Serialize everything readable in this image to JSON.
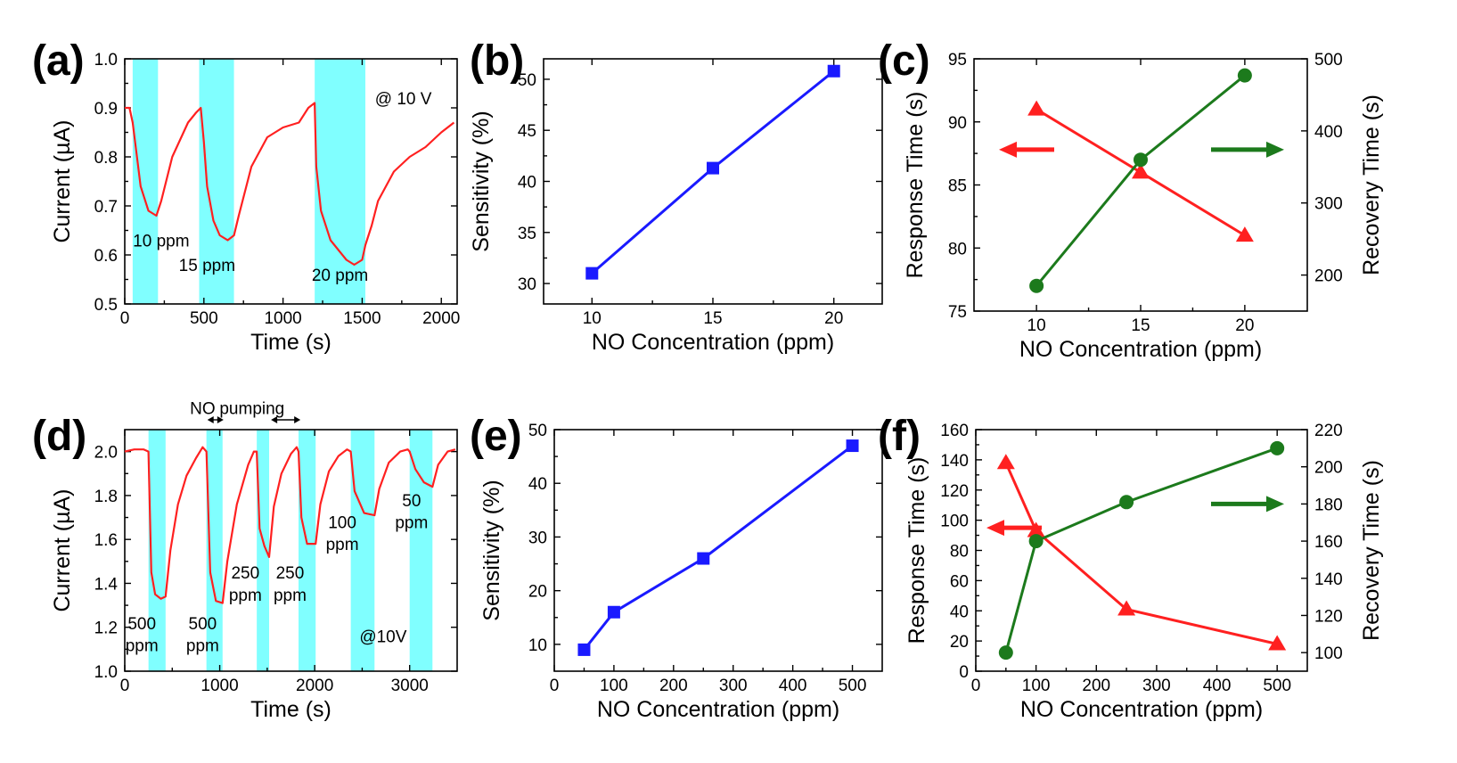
{
  "colors": {
    "current_trace": "#ff2020",
    "gas_exposure_band": "#80ffff",
    "sensitivity_series": "#1a1aff",
    "response_series": "#ff2020",
    "recovery_series": "#1c7a1c"
  },
  "chart_data": [
    {
      "panel": "(a)",
      "type": "line",
      "xlabel": "Time (s)",
      "ylabel": "Current (µA)",
      "xlim": [
        0,
        2100
      ],
      "ylim": [
        0.5,
        1.0
      ],
      "xticks": [
        0,
        500,
        1000,
        1500,
        2000
      ],
      "yticks": [
        0.5,
        0.6,
        0.7,
        0.8,
        0.9,
        1.0
      ],
      "ytick_labels": [
        "0.5",
        "0.6",
        "0.7",
        "0.8",
        "0.9",
        "1.0"
      ],
      "exposure_bands": [
        [
          50,
          210
        ],
        [
          470,
          690
        ],
        [
          1200,
          1520
        ]
      ],
      "series": [
        {
          "x": [
            0,
            30,
            50,
            100,
            150,
            200,
            230,
            300,
            400,
            450,
            480,
            500,
            520,
            560,
            600,
            650,
            690,
            720,
            800,
            900,
            1000,
            1100,
            1160,
            1200,
            1210,
            1240,
            1300,
            1350,
            1400,
            1450,
            1500,
            1520,
            1560,
            1600,
            1700,
            1800,
            1900,
            2000,
            2080
          ],
          "y": [
            0.9,
            0.9,
            0.87,
            0.74,
            0.69,
            0.68,
            0.71,
            0.8,
            0.87,
            0.89,
            0.9,
            0.83,
            0.74,
            0.67,
            0.64,
            0.63,
            0.64,
            0.68,
            0.78,
            0.84,
            0.86,
            0.87,
            0.9,
            0.91,
            0.78,
            0.69,
            0.63,
            0.61,
            0.59,
            0.58,
            0.59,
            0.62,
            0.66,
            0.71,
            0.77,
            0.8,
            0.82,
            0.85,
            0.87
          ]
        }
      ],
      "annotations": [
        {
          "text": "10 ppm",
          "x": 230,
          "y": 0.63
        },
        {
          "text": "15 ppm",
          "x": 520,
          "y": 0.58
        },
        {
          "text": "20 ppm",
          "x": 1360,
          "y": 0.56
        },
        {
          "text": "@ 10 V",
          "x": 1760,
          "y": 0.92
        }
      ]
    },
    {
      "panel": "(b)",
      "type": "line",
      "xlabel": "NO Concentration (ppm)",
      "ylabel": "Sensitivity (%)",
      "xlim": [
        8,
        22
      ],
      "ylim": [
        28,
        52
      ],
      "xticks": [
        10,
        15,
        20
      ],
      "yticks": [
        30,
        35,
        40,
        45,
        50
      ],
      "series": [
        {
          "x": [
            10,
            15,
            20
          ],
          "y": [
            31.0,
            41.3,
            50.8
          ]
        }
      ]
    },
    {
      "panel": "(c)",
      "type": "line",
      "xlabel": "NO Concentration (ppm)",
      "ylabel": "Response Time (s)",
      "y2label": "Recovery Time (s)",
      "xlim": [
        7,
        23
      ],
      "ylim": [
        75,
        95
      ],
      "y2lim": [
        150,
        500
      ],
      "xticks": [
        10,
        15,
        20
      ],
      "yticks": [
        75,
        80,
        85,
        90,
        95
      ],
      "y2ticks": [
        200,
        300,
        400,
        500
      ],
      "series": [
        {
          "axis": "left",
          "x": [
            10,
            15,
            20
          ],
          "y": [
            91.0,
            86.0,
            81.0
          ]
        },
        {
          "axis": "right",
          "x": [
            10,
            15,
            20
          ],
          "y": [
            185,
            360,
            477
          ]
        }
      ]
    },
    {
      "panel": "(d)",
      "type": "line",
      "xlabel": "Time (s)",
      "ylabel": "Current (µA)",
      "xlim": [
        0,
        3500
      ],
      "ylim": [
        1.0,
        2.1
      ],
      "xticks": [
        0,
        1000,
        2000,
        3000
      ],
      "yticks": [
        1.0,
        1.2,
        1.4,
        1.6,
        1.8,
        2.0
      ],
      "ytick_labels": [
        "1.0",
        "1.2",
        "1.4",
        "1.6",
        "1.8",
        "2.0"
      ],
      "exposure_bands": [
        [
          250,
          430
        ],
        [
          860,
          1030
        ],
        [
          1390,
          1520
        ],
        [
          1830,
          2010
        ],
        [
          2380,
          2630
        ],
        [
          3000,
          3240
        ]
      ],
      "series": [
        {
          "x": [
            0,
            100,
            200,
            250,
            280,
            320,
            380,
            430,
            480,
            560,
            650,
            750,
            820,
            860,
            900,
            960,
            1030,
            1080,
            1180,
            1300,
            1360,
            1390,
            1420,
            1470,
            1520,
            1570,
            1650,
            1750,
            1810,
            1830,
            1860,
            1920,
            2010,
            2060,
            2150,
            2250,
            2340,
            2380,
            2420,
            2520,
            2630,
            2680,
            2780,
            2900,
            2980,
            3000,
            3060,
            3150,
            3240,
            3300,
            3400,
            3480
          ],
          "y": [
            2.0,
            2.01,
            2.01,
            2.0,
            1.45,
            1.35,
            1.33,
            1.34,
            1.55,
            1.76,
            1.89,
            1.97,
            2.02,
            2.0,
            1.45,
            1.32,
            1.31,
            1.5,
            1.76,
            1.94,
            2.0,
            2.0,
            1.65,
            1.57,
            1.52,
            1.75,
            1.9,
            1.99,
            2.02,
            2.0,
            1.7,
            1.58,
            1.58,
            1.76,
            1.91,
            1.98,
            2.01,
            2.0,
            1.82,
            1.72,
            1.71,
            1.83,
            1.95,
            2.0,
            2.01,
            2.0,
            1.92,
            1.86,
            1.84,
            1.94,
            2.0,
            2.01
          ]
        }
      ],
      "annotations": [
        {
          "text": "500",
          "x": 180,
          "y": 1.22
        },
        {
          "text": "ppm",
          "x": 180,
          "y": 1.12
        },
        {
          "text": "500",
          "x": 820,
          "y": 1.22
        },
        {
          "text": "ppm",
          "x": 820,
          "y": 1.12
        },
        {
          "text": "250",
          "x": 1270,
          "y": 1.45
        },
        {
          "text": "ppm",
          "x": 1270,
          "y": 1.35
        },
        {
          "text": "250",
          "x": 1740,
          "y": 1.45
        },
        {
          "text": "ppm",
          "x": 1740,
          "y": 1.35
        },
        {
          "text": "100",
          "x": 2290,
          "y": 1.68
        },
        {
          "text": "ppm",
          "x": 2290,
          "y": 1.58
        },
        {
          "text": "50",
          "x": 3020,
          "y": 1.78
        },
        {
          "text": "ppm",
          "x": 3020,
          "y": 1.68
        },
        {
          "text": "@10V",
          "x": 2720,
          "y": 1.16
        },
        {
          "text": "NO",
          "x": 820,
          "y": 2.2
        },
        {
          "text": "pumping",
          "x": 1340,
          "y": 2.2
        }
      ],
      "arrows": [
        {
          "label": "NO",
          "from": 870,
          "to": 1040
        },
        {
          "label": "pumping",
          "from": 1540,
          "to": 1850
        }
      ]
    },
    {
      "panel": "(e)",
      "type": "line",
      "xlabel": "NO Concentration (ppm)",
      "ylabel": "Sensitivity (%)",
      "xlim": [
        0,
        550
      ],
      "ylim": [
        5,
        50
      ],
      "xticks": [
        0,
        100,
        200,
        300,
        400,
        500
      ],
      "yticks": [
        10,
        20,
        30,
        40,
        50
      ],
      "series": [
        {
          "x": [
            50,
            100,
            250,
            500
          ],
          "y": [
            9,
            16,
            26,
            47
          ]
        }
      ]
    },
    {
      "panel": "(f)",
      "type": "line",
      "xlabel": "NO Concentration (ppm)",
      "ylabel": "Response Time (s)",
      "y2label": "Recovery Time (s)",
      "xlim": [
        0,
        550
      ],
      "ylim": [
        0,
        160
      ],
      "y2lim": [
        90,
        220
      ],
      "xticks": [
        0,
        100,
        200,
        300,
        400,
        500
      ],
      "yticks": [
        0,
        20,
        40,
        60,
        80,
        100,
        120,
        140,
        160
      ],
      "y2ticks": [
        100,
        120,
        140,
        160,
        180,
        200,
        220
      ],
      "series": [
        {
          "axis": "left",
          "x": [
            50,
            100,
            250,
            500
          ],
          "y": [
            138,
            93,
            41,
            18
          ]
        },
        {
          "axis": "right",
          "x": [
            50,
            100,
            250,
            500
          ],
          "y": [
            100,
            160,
            181,
            210
          ]
        }
      ]
    }
  ]
}
